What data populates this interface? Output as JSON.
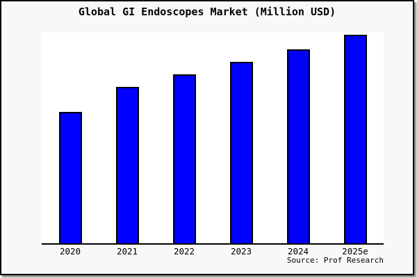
{
  "title": "Global GI Endoscopes Market (Million USD)",
  "source": "Source: Prof Research",
  "colors": {
    "figure_bg": "#f8f8f8",
    "plot_bg": "#ffffff",
    "bar_fill": "#0000ff",
    "bar_border": "#000000",
    "axis_line": "#000000",
    "frame_border": "#000000",
    "text": "#000000"
  },
  "chart_data": {
    "type": "bar",
    "title": "Global GI Endoscopes Market (Million USD)",
    "categories": [
      "2020",
      "2021",
      "2022",
      "2023",
      "2024",
      "2025e"
    ],
    "values": [
      63,
      75,
      81,
      87,
      93,
      100
    ],
    "values_note": "y-axis has no tick labels; values estimated from relative bar heights, normalized so 2025e = 100",
    "xlabel": "",
    "ylabel": "",
    "ylim": [
      0,
      100
    ],
    "grid": false,
    "legend": "none",
    "bar_color": "#0000ff"
  }
}
